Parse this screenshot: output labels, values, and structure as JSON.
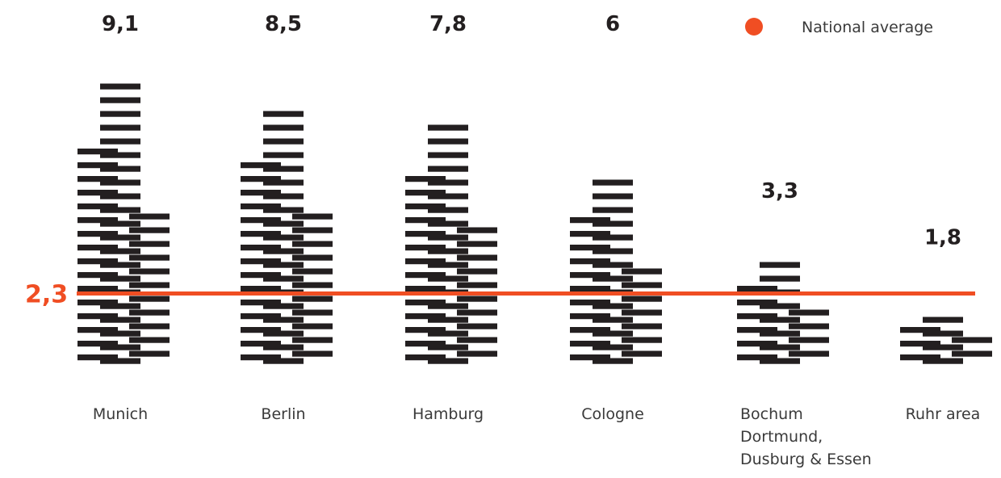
{
  "chart_data": {
    "type": "bar",
    "title": "",
    "xlabel": "",
    "ylabel": "",
    "categories": [
      [
        "Munich"
      ],
      [
        "Berlin"
      ],
      [
        "Hamburg"
      ],
      [
        "Cologne"
      ],
      [
        "Bochum",
        "Dortmund,",
        "Dusburg & Essen"
      ],
      [
        "Ruhr area"
      ]
    ],
    "values": [
      9.1,
      8.5,
      7.8,
      6,
      3.3,
      1.8
    ],
    "value_labels": [
      "9,1",
      "8,5",
      "7,8",
      "6",
      "3,3",
      "1,8"
    ],
    "reference_line": {
      "value": 2.3,
      "label": "2,3",
      "legend": "National average"
    },
    "ylim": [
      0,
      10
    ],
    "grid": false,
    "legend_position": "top-right"
  },
  "colors": {
    "bars": "#231f20",
    "average": "#f04e23",
    "text": "#3a3a3a"
  }
}
